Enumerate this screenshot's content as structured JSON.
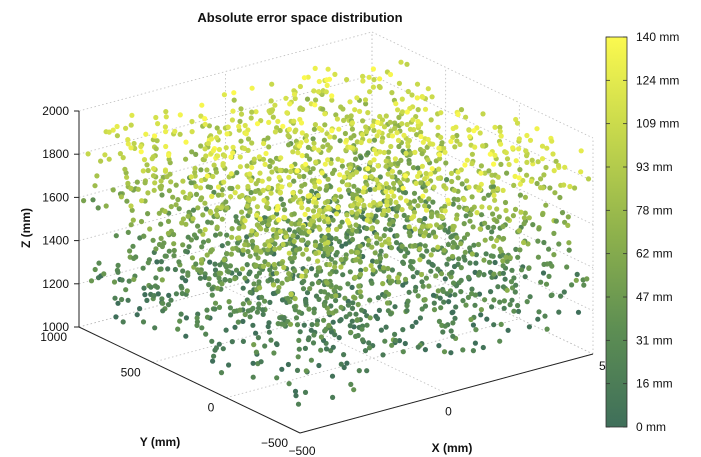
{
  "chart_data": {
    "type": "scatter",
    "dimensions": 3,
    "title": "Absolute error space distribution",
    "xlabel": "X (mm)",
    "ylabel": "Y (mm)",
    "zlabel": "Z (mm)",
    "xticks": [
      "−500",
      "0",
      "5"
    ],
    "yticks": [
      "1000",
      "500",
      "0",
      "−500"
    ],
    "zticks": [
      "1000",
      "1200",
      "1400",
      "1600",
      "1800",
      "2000"
    ],
    "xlim": [
      -500,
      500
    ],
    "ylim": [
      -500,
      1000
    ],
    "zlim": [
      1000,
      2000
    ],
    "grid": true,
    "colorbar": {
      "range": [
        0,
        140
      ],
      "unit": "mm",
      "ticks": [
        "0 mm",
        "16 mm",
        "31 mm",
        "47 mm",
        "62 mm",
        "78 mm",
        "93 mm",
        "109 mm",
        "124 mm",
        "140 mm"
      ],
      "colors": [
        "#3f6f5a",
        "#5d8e53",
        "#8fb24c",
        "#c5d74c",
        "#fbf94f"
      ]
    },
    "points_summary": {
      "count_approx": 2500,
      "x_range": [
        -500,
        500
      ],
      "y_range": [
        -500,
        1000
      ],
      "z_range": [
        1100,
        1950
      ],
      "error_trend": "error increases with Z: dark green (≈0–40 mm) near Z 1200–1400, yellow (≈110–140 mm) near Z 1800–1950"
    }
  }
}
